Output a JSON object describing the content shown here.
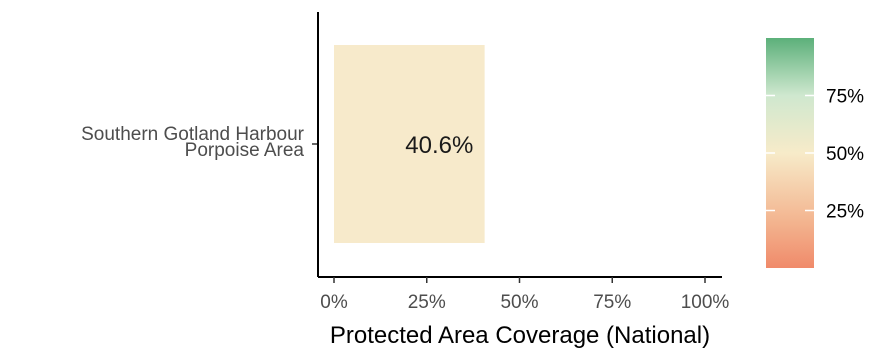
{
  "chart_data": {
    "type": "bar",
    "orientation": "horizontal",
    "categories": [
      "Southern Gotland Harbour\nPorpoise Area"
    ],
    "values": [
      40.6
    ],
    "data_labels": [
      "40.6%"
    ],
    "xlabel": "Protected Area Coverage (National)",
    "ylabel": "",
    "xlim": [
      0,
      100
    ],
    "x_ticks": [
      0,
      25,
      50,
      75,
      100
    ],
    "x_tick_labels": [
      "0%",
      "25%",
      "50%",
      "75%",
      "100%"
    ],
    "grid": false,
    "legend": {
      "type": "colorbar",
      "placement": "right",
      "range": [
        0,
        100
      ],
      "ticks": [
        25,
        50,
        75
      ],
      "tick_labels": [
        "25%",
        "50%",
        "75%"
      ],
      "colors": [
        "#f08a6a",
        "#f6e7c6",
        "#62b47f"
      ]
    },
    "bar_color": "#f7eacb"
  }
}
